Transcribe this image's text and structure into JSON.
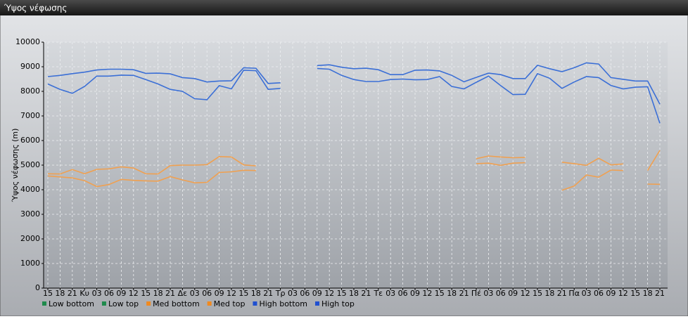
{
  "chart_data": {
    "type": "line",
    "title": "Ύψος νέφωσης",
    "y_label": "Ύψος νέφωσης (m)",
    "categories": [
      "15",
      "18",
      "21",
      "Κυ",
      "03",
      "06",
      "09",
      "12",
      "15",
      "18",
      "21",
      "Δε",
      "03",
      "06",
      "09",
      "12",
      "15",
      "18",
      "21",
      "Τρ",
      "03",
      "06",
      "09",
      "12",
      "15",
      "18",
      "21",
      "Τε",
      "03",
      "06",
      "09",
      "12",
      "15",
      "18",
      "21",
      "Πέ",
      "03",
      "06",
      "09",
      "12",
      "15",
      "18",
      "21",
      "Πα",
      "03",
      "06",
      "09",
      "12",
      "15",
      "18",
      "21"
    ],
    "ylim": [
      0,
      10000
    ],
    "yticks": [
      0,
      1000,
      2000,
      3000,
      4000,
      5000,
      6000,
      7000,
      8000,
      9000,
      10000
    ],
    "grid": true,
    "series": [
      {
        "name": "Low bottom",
        "color": "#1f8a4c",
        "legend_color": "#1f8a4c",
        "values": [
          null,
          null,
          null,
          null,
          null,
          null,
          null,
          null,
          null,
          null,
          null,
          null,
          null,
          null,
          null,
          null,
          null,
          null,
          null,
          null,
          null,
          null,
          null,
          null,
          null,
          null,
          null,
          null,
          null,
          null,
          null,
          null,
          null,
          null,
          null,
          null,
          null,
          null,
          null,
          null,
          null,
          null,
          null,
          null,
          null,
          null,
          null,
          null,
          null,
          null,
          null
        ]
      },
      {
        "name": "Low top",
        "color": "#1f8a4c",
        "legend_color": "#1f8a4c",
        "values": [
          null,
          null,
          null,
          null,
          null,
          null,
          null,
          null,
          null,
          null,
          null,
          null,
          null,
          null,
          null,
          null,
          null,
          null,
          null,
          null,
          null,
          null,
          null,
          null,
          null,
          null,
          null,
          null,
          null,
          null,
          null,
          null,
          null,
          null,
          null,
          null,
          null,
          null,
          null,
          null,
          null,
          null,
          null,
          null,
          null,
          null,
          null,
          null,
          null,
          null,
          null
        ]
      },
      {
        "name": "Med bottom",
        "color": "#f0a050",
        "legend_color": "#f08a20",
        "values": [
          4560,
          4520,
          4480,
          4370,
          4130,
          4210,
          4420,
          4380,
          4360,
          4350,
          4530,
          4400,
          4280,
          4300,
          4700,
          4730,
          4790,
          4780,
          null,
          null,
          null,
          null,
          null,
          null,
          null,
          null,
          null,
          null,
          null,
          null,
          null,
          null,
          null,
          null,
          null,
          5060,
          5080,
          4990,
          5080,
          5100,
          null,
          null,
          3980,
          4150,
          4600,
          4510,
          4800,
          4780,
          null,
          4230,
          4220
        ]
      },
      {
        "name": "Med top",
        "color": "#f0a050",
        "legend_color": "#f08a20",
        "values": [
          4650,
          4640,
          4820,
          4650,
          4830,
          4850,
          4930,
          4880,
          4650,
          4640,
          4980,
          5000,
          5000,
          5020,
          5350,
          5330,
          5010,
          4970,
          null,
          null,
          null,
          null,
          null,
          null,
          null,
          null,
          null,
          null,
          null,
          null,
          null,
          null,
          null,
          null,
          null,
          5260,
          5370,
          5330,
          5300,
          5310,
          null,
          null,
          5120,
          5060,
          4990,
          5280,
          5010,
          5050,
          null,
          4780,
          5600
        ]
      },
      {
        "name": "High bottom",
        "color": "#3b6fd6",
        "legend_color": "#2050d0",
        "values": [
          8300,
          8080,
          7920,
          8200,
          8620,
          8620,
          8660,
          8650,
          8480,
          8300,
          8080,
          8000,
          7700,
          7660,
          8230,
          8100,
          8860,
          8840,
          8080,
          8120,
          null,
          null,
          8930,
          8900,
          8650,
          8480,
          8400,
          8400,
          8480,
          8500,
          8470,
          8480,
          8600,
          8200,
          8100,
          8370,
          8620,
          8230,
          7870,
          7880,
          8720,
          8530,
          8120,
          8380,
          8600,
          8560,
          8240,
          8100,
          8170,
          8190,
          6700
        ]
      },
      {
        "name": "High top",
        "color": "#3b6fd6",
        "legend_color": "#2050d0",
        "values": [
          8600,
          8650,
          8720,
          8780,
          8870,
          8900,
          8900,
          8880,
          8730,
          8740,
          8710,
          8560,
          8520,
          8380,
          8420,
          8430,
          8960,
          8940,
          8320,
          8350,
          null,
          null,
          9050,
          9080,
          8980,
          8920,
          8940,
          8880,
          8680,
          8680,
          8860,
          8870,
          8830,
          8650,
          8390,
          8570,
          8740,
          8680,
          8520,
          8520,
          9060,
          8920,
          8800,
          8960,
          9160,
          9110,
          8560,
          8490,
          8420,
          8420,
          7480
        ]
      }
    ]
  }
}
